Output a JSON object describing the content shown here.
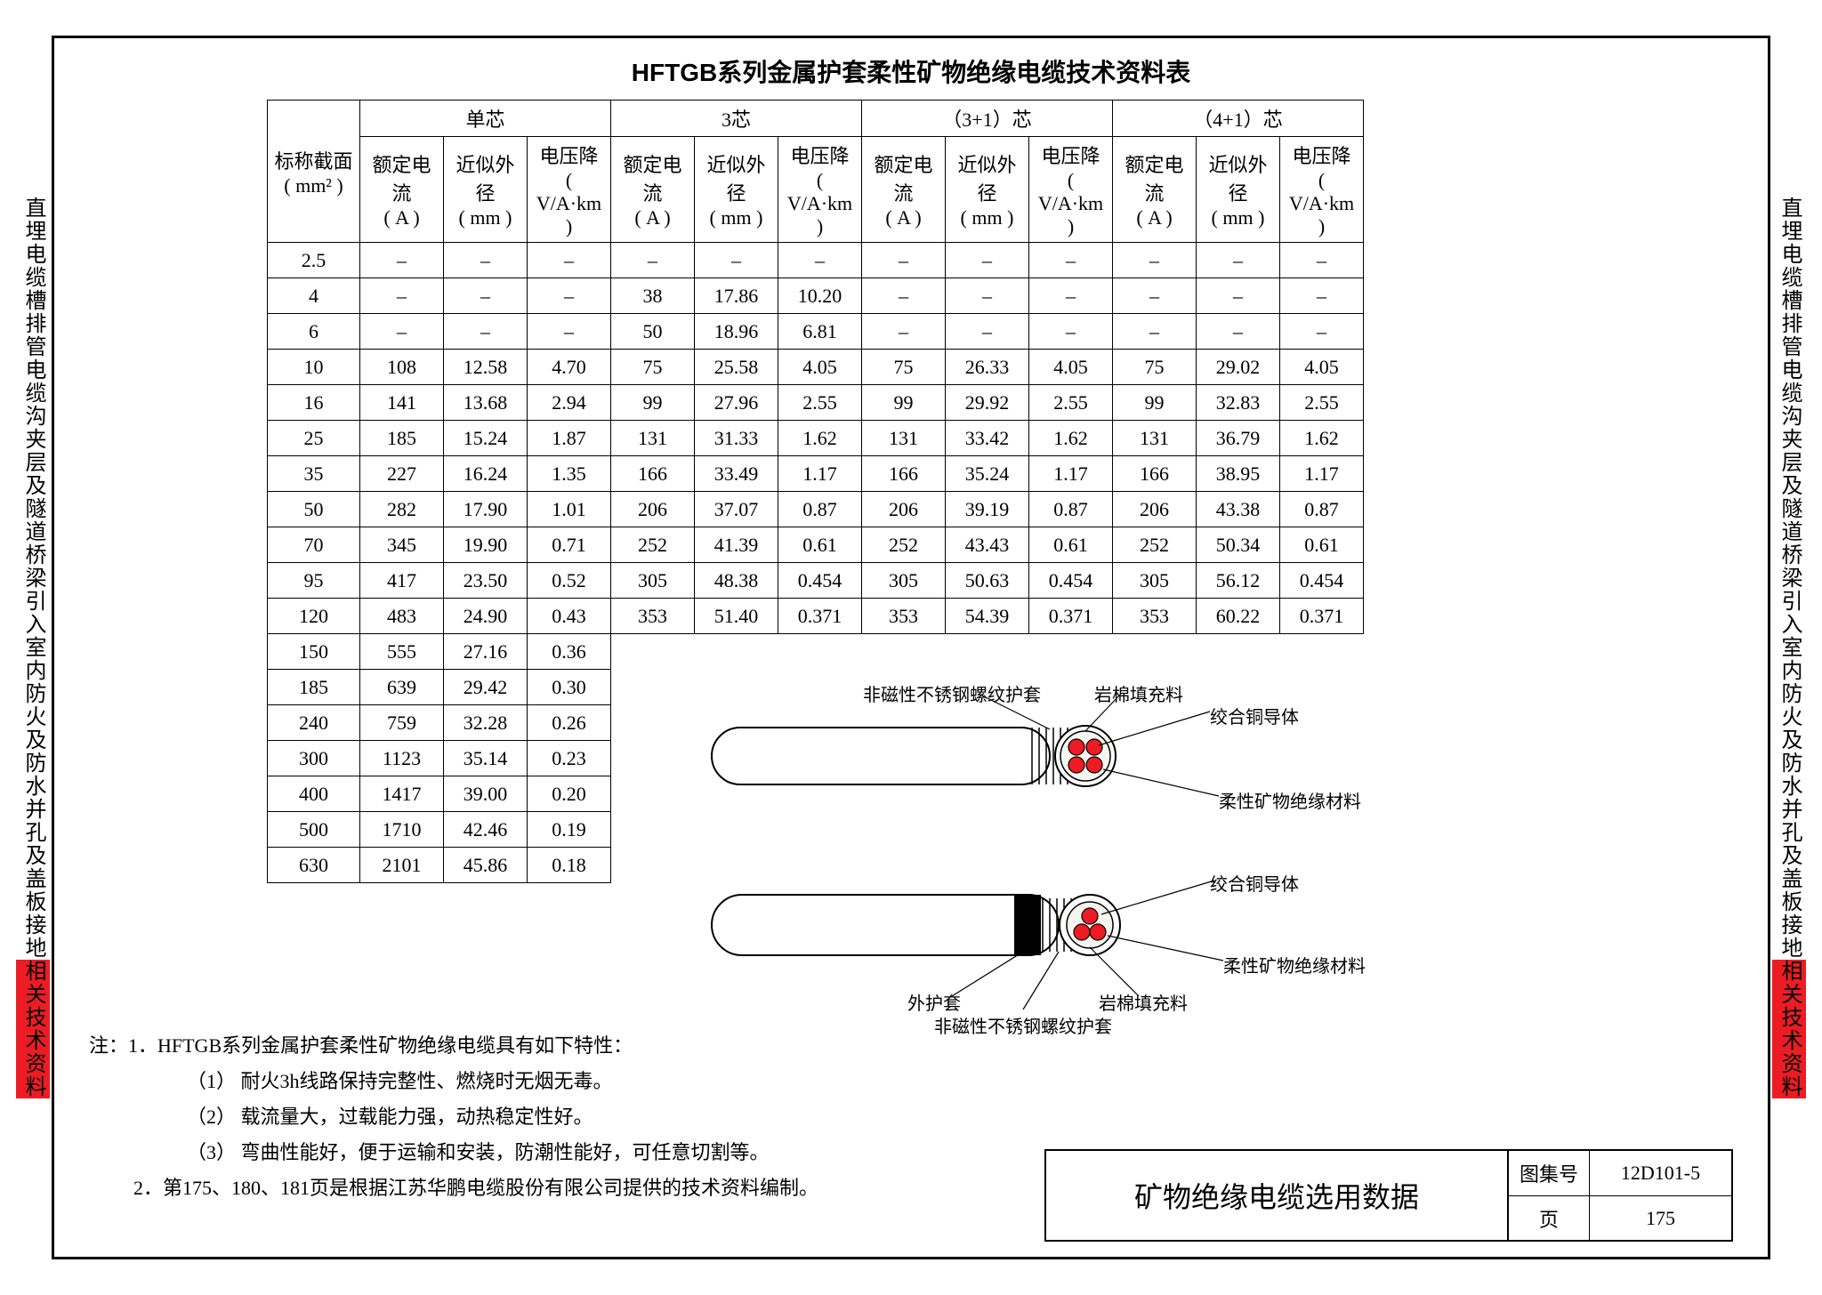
{
  "side_label_text": "直埋电缆槽排管电缆沟夹层及隧道桥梁引入室内防火及防水并孔及盖板接地相关技术资料",
  "main_title": "HFTGB系列金属护套柔性矿物绝缘电缆技术资料表",
  "headers": {
    "section": "标称截面",
    "section_unit": "( mm² )",
    "groups": [
      "单芯",
      "3芯",
      "（3+1）芯",
      "（4+1）芯"
    ],
    "sub": [
      "额定电流",
      "近似外径",
      "电压降"
    ],
    "sub_units": [
      "( A )",
      "( mm )",
      "( V/A·km )"
    ]
  },
  "rows_full": [
    [
      "2.5",
      "–",
      "–",
      "–",
      "–",
      "–",
      "–",
      "–",
      "–",
      "–",
      "–",
      "–",
      "–"
    ],
    [
      "4",
      "–",
      "–",
      "–",
      "38",
      "17.86",
      "10.20",
      "–",
      "–",
      "–",
      "–",
      "–",
      "–"
    ],
    [
      "6",
      "–",
      "–",
      "–",
      "50",
      "18.96",
      "6.81",
      "–",
      "–",
      "–",
      "–",
      "–",
      "–"
    ],
    [
      "10",
      "108",
      "12.58",
      "4.70",
      "75",
      "25.58",
      "4.05",
      "75",
      "26.33",
      "4.05",
      "75",
      "29.02",
      "4.05"
    ],
    [
      "16",
      "141",
      "13.68",
      "2.94",
      "99",
      "27.96",
      "2.55",
      "99",
      "29.92",
      "2.55",
      "99",
      "32.83",
      "2.55"
    ],
    [
      "25",
      "185",
      "15.24",
      "1.87",
      "131",
      "31.33",
      "1.62",
      "131",
      "33.42",
      "1.62",
      "131",
      "36.79",
      "1.62"
    ],
    [
      "35",
      "227",
      "16.24",
      "1.35",
      "166",
      "33.49",
      "1.17",
      "166",
      "35.24",
      "1.17",
      "166",
      "38.95",
      "1.17"
    ],
    [
      "50",
      "282",
      "17.90",
      "1.01",
      "206",
      "37.07",
      "0.87",
      "206",
      "39.19",
      "0.87",
      "206",
      "43.38",
      "0.87"
    ],
    [
      "70",
      "345",
      "19.90",
      "0.71",
      "252",
      "41.39",
      "0.61",
      "252",
      "43.43",
      "0.61",
      "252",
      "50.34",
      "0.61"
    ],
    [
      "95",
      "417",
      "23.50",
      "0.52",
      "305",
      "48.38",
      "0.454",
      "305",
      "50.63",
      "0.454",
      "305",
      "56.12",
      "0.454"
    ],
    [
      "120",
      "483",
      "24.90",
      "0.43",
      "353",
      "51.40",
      "0.371",
      "353",
      "54.39",
      "0.371",
      "353",
      "60.22",
      "0.371"
    ]
  ],
  "rows_single": [
    [
      "150",
      "555",
      "27.16",
      "0.36"
    ],
    [
      "185",
      "639",
      "29.42",
      "0.30"
    ],
    [
      "240",
      "759",
      "32.28",
      "0.26"
    ],
    [
      "300",
      "1123",
      "35.14",
      "0.23"
    ],
    [
      "400",
      "1417",
      "39.00",
      "0.20"
    ],
    [
      "500",
      "1710",
      "42.46",
      "0.19"
    ],
    [
      "630",
      "2101",
      "45.86",
      "0.18"
    ]
  ],
  "notes": {
    "prefix": "注：1．HFTGB系列金属护套柔性矿物绝缘电缆具有如下特性：",
    "items": [
      "（1） 耐火3h线路保持完整性、燃烧时无烟无毒。",
      "（2） 载流量大，过载能力强，动热稳定性好。",
      "（3） 弯曲性能好，便于运输和安装，防潮性能好，可任意切割等。"
    ],
    "line2": "2．第175、180、181页是根据江苏华鹏电缆股份有限公司提供的技术资料编制。"
  },
  "diagram_labels": {
    "a1": "非磁性不锈钢螺纹护套",
    "a2": "岩棉填充料",
    "a3": "绞合铜导体",
    "a4": "柔性矿物绝缘材料",
    "b1": "外护套",
    "b2": "非磁性不锈钢螺纹护套",
    "b3": "岩棉填充料",
    "b4": "绞合铜导体",
    "b5": "柔性矿物绝缘材料"
  },
  "title_block": {
    "main": "矿物绝缘电缆选用数据",
    "atlas_label": "图集号",
    "atlas_value": "12D101-5",
    "page_label": "页",
    "page_value": "175"
  },
  "colors": {
    "border": "#000000",
    "red": "#ed1c24",
    "conductor": "#ed1c24",
    "bg": "#ffffff"
  }
}
